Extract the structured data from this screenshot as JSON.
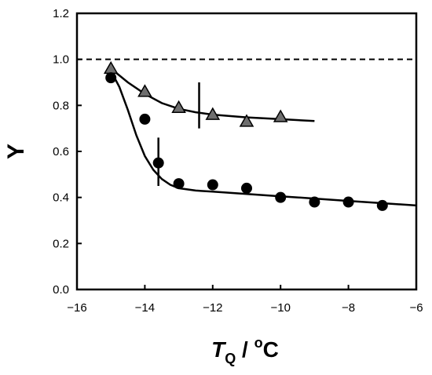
{
  "chart_data": {
    "type": "scatter",
    "xlabel_main": "T",
    "xlabel_sub": "Q",
    "xlabel_sep": " / ",
    "xlabel_sup": "o",
    "xlabel_unit": "C",
    "ylabel": "Y",
    "xlim": [
      -16,
      -6
    ],
    "ylim": [
      0,
      1.2
    ],
    "x_ticks": [
      -16,
      -14,
      -12,
      -10,
      -8,
      -6
    ],
    "x_tick_labels": [
      "−16",
      "−14",
      "−12",
      "−10",
      "−8",
      "−6"
    ],
    "y_ticks": [
      0,
      0.2,
      0.4,
      0.6,
      0.8,
      1.0,
      1.2
    ],
    "y_tick_labels": [
      "0.0",
      "0.2",
      "0.4",
      "0.6",
      "0.8",
      "1.0",
      "1.2"
    ],
    "reference_line": {
      "y": 1.0,
      "style": "dashed"
    },
    "series": [
      {
        "marker": "triangle",
        "x": [
          -15,
          -14,
          -13,
          -12,
          -11,
          -10
        ],
        "y": [
          0.96,
          0.86,
          0.79,
          0.76,
          0.73,
          0.75
        ],
        "fit": [
          [
            -15,
            0.96
          ],
          [
            -14.5,
            0.9
          ],
          [
            -14,
            0.85
          ],
          [
            -13.5,
            0.81
          ],
          [
            -13,
            0.785
          ],
          [
            -12.5,
            0.77
          ],
          [
            -12,
            0.76
          ],
          [
            -11,
            0.748
          ],
          [
            -10,
            0.74
          ],
          [
            -9,
            0.732
          ]
        ],
        "marker_line": {
          "x": -12.4,
          "y1": 0.7,
          "y2": 0.9
        }
      },
      {
        "marker": "circle",
        "x": [
          -15,
          -14,
          -13.6,
          -13,
          -12,
          -11,
          -10,
          -9,
          -8,
          -7
        ],
        "y": [
          0.92,
          0.74,
          0.55,
          0.46,
          0.455,
          0.44,
          0.4,
          0.38,
          0.38,
          0.365
        ],
        "fit": [
          [
            -15,
            0.95
          ],
          [
            -14.75,
            0.88
          ],
          [
            -14.5,
            0.78
          ],
          [
            -14.25,
            0.67
          ],
          [
            -14,
            0.58
          ],
          [
            -13.75,
            0.52
          ],
          [
            -13.5,
            0.48
          ],
          [
            -13.25,
            0.455
          ],
          [
            -13,
            0.44
          ],
          [
            -12.5,
            0.43
          ],
          [
            -12,
            0.425
          ],
          [
            -11,
            0.415
          ],
          [
            -10,
            0.405
          ],
          [
            -9,
            0.395
          ],
          [
            -8,
            0.385
          ],
          [
            -7,
            0.375
          ],
          [
            -6,
            0.365
          ]
        ],
        "marker_line": {
          "x": -13.6,
          "y1": 0.45,
          "y2": 0.66
        }
      }
    ]
  }
}
